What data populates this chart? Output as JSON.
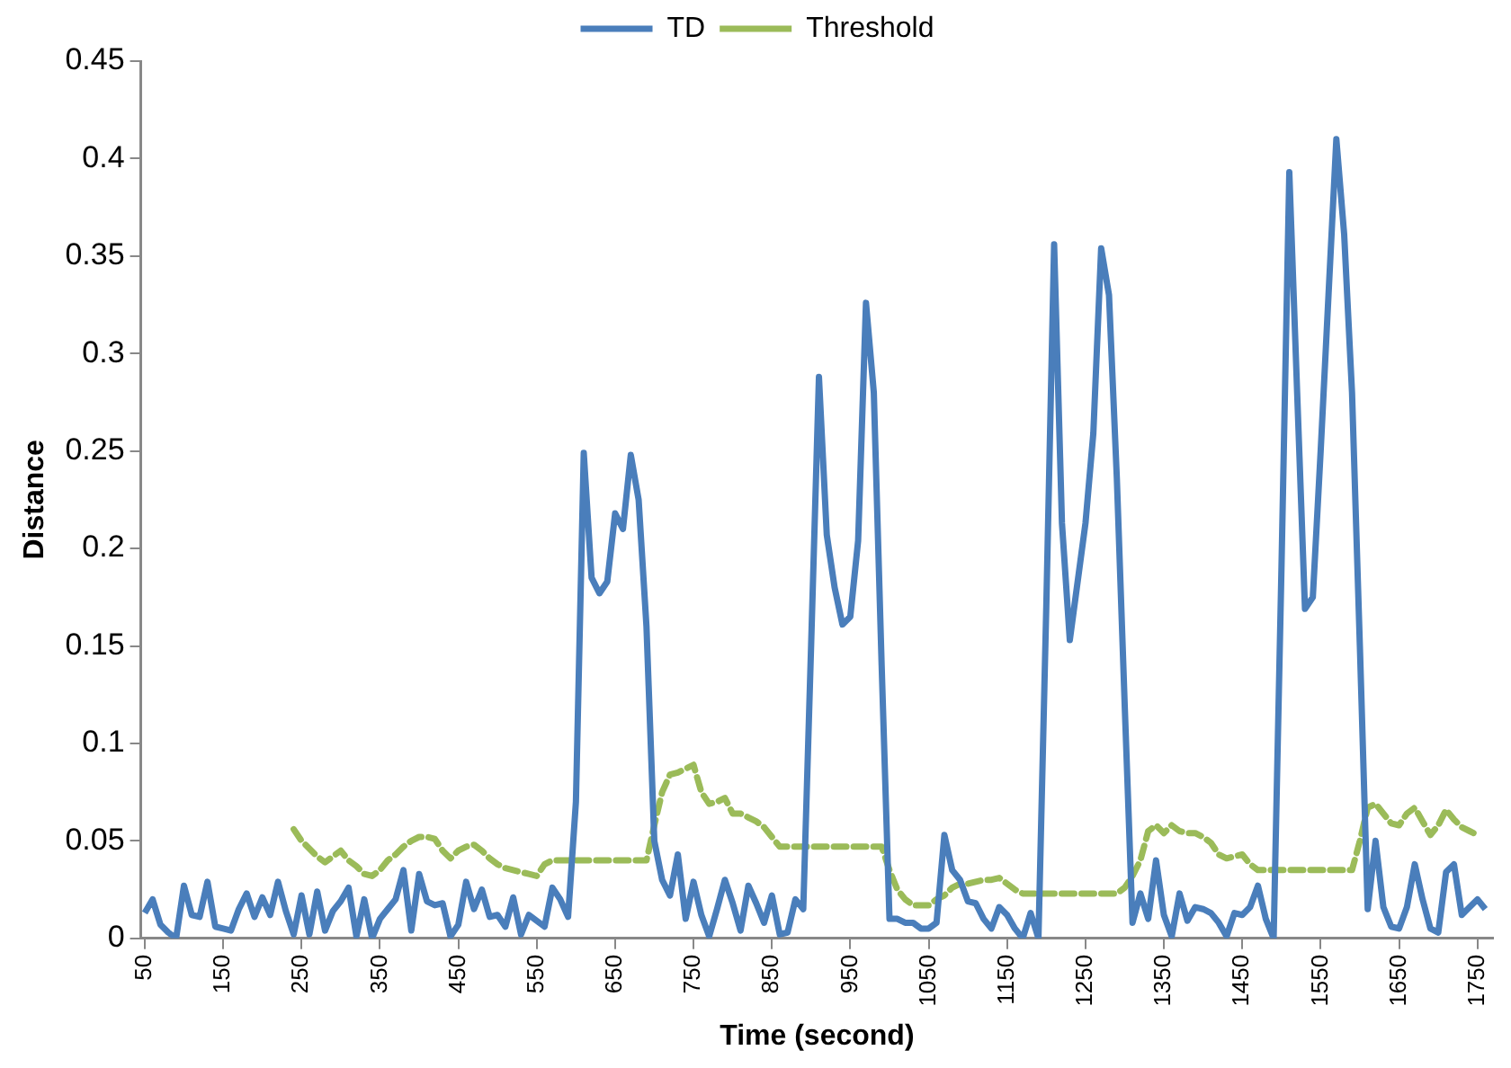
{
  "chart_data": {
    "type": "line",
    "xlabel": "Time (second)",
    "ylabel": "Distance",
    "legend": "top",
    "grid": false,
    "x": [
      50,
      60,
      70,
      80,
      90,
      100,
      110,
      120,
      130,
      140,
      150,
      160,
      170,
      180,
      190,
      200,
      210,
      220,
      230,
      240,
      250,
      260,
      270,
      280,
      290,
      300,
      310,
      320,
      330,
      340,
      350,
      360,
      370,
      380,
      390,
      400,
      410,
      420,
      430,
      440,
      450,
      460,
      470,
      480,
      490,
      500,
      510,
      520,
      530,
      540,
      550,
      560,
      570,
      580,
      590,
      600,
      610,
      620,
      630,
      640,
      650,
      660,
      670,
      680,
      690,
      700,
      710,
      720,
      730,
      740,
      750,
      760,
      770,
      780,
      790,
      800,
      810,
      820,
      830,
      840,
      850,
      860,
      870,
      880,
      890,
      900,
      910,
      920,
      930,
      940,
      950,
      960,
      970,
      980,
      990,
      1000,
      1010,
      1020,
      1030,
      1040,
      1050,
      1060,
      1070,
      1080,
      1090,
      1100,
      1110,
      1120,
      1130,
      1140,
      1150,
      1160,
      1170,
      1180,
      1190,
      1200,
      1210,
      1220,
      1230,
      1240,
      1250,
      1260,
      1270,
      1280,
      1290,
      1300,
      1310,
      1320,
      1330,
      1340,
      1350,
      1360,
      1370,
      1380,
      1390,
      1400,
      1410,
      1420,
      1430,
      1440,
      1450,
      1460,
      1470,
      1480,
      1490,
      1500,
      1510,
      1520,
      1530,
      1540,
      1550,
      1560,
      1570,
      1580,
      1590,
      1600,
      1610,
      1620,
      1630,
      1640,
      1650,
      1660,
      1670,
      1680,
      1690,
      1700,
      1710,
      1720,
      1730,
      1740,
      1750,
      1760
    ],
    "xlim": [
      45,
      1770
    ],
    "xticks": [
      50,
      150,
      250,
      350,
      450,
      550,
      650,
      750,
      850,
      950,
      1050,
      1150,
      1250,
      1350,
      1450,
      1550,
      1650,
      1750
    ],
    "ylim": [
      0,
      0.45
    ],
    "yticks": [
      0,
      0.05,
      0.1,
      0.15,
      0.2,
      0.25,
      0.3,
      0.35,
      0.4,
      0.45
    ],
    "series": [
      {
        "name": "TD",
        "color": "#4a7ebb",
        "line_style": "solid",
        "values": [
          0.013,
          0.02,
          0.007,
          0.003,
          0,
          0.027,
          0.012,
          0.011,
          0.029,
          0.006,
          0.005,
          0.004,
          0.015,
          0.023,
          0.011,
          0.021,
          0.012,
          0.029,
          0.014,
          0.002,
          0.022,
          0.002,
          0.024,
          0.004,
          0.014,
          0.019,
          0.026,
          0.001,
          0.02,
          0,
          0.01,
          0.015,
          0.02,
          0.035,
          0.004,
          0.033,
          0.019,
          0.017,
          0.018,
          0.001,
          0.007,
          0.029,
          0.015,
          0.025,
          0.011,
          0.012,
          0.006,
          0.021,
          0.002,
          0.012,
          0.009,
          0.006,
          0.026,
          0.02,
          0.011,
          0.07,
          0.249,
          0.185,
          0.177,
          0.183,
          0.218,
          0.21,
          0.248,
          0.225,
          0.16,
          0.05,
          0.03,
          0.022,
          0.043,
          0.01,
          0.029,
          0.012,
          0.001,
          0.015,
          0.03,
          0.018,
          0.004,
          0.027,
          0.018,
          0.008,
          0.022,
          0.002,
          0.003,
          0.02,
          0.015,
          0.15,
          0.288,
          0.207,
          0.18,
          0.161,
          0.165,
          0.204,
          0.326,
          0.28,
          0.14,
          0.01,
          0.01,
          0.008,
          0.008,
          0.005,
          0.005,
          0.008,
          0.053,
          0.035,
          0.03,
          0.019,
          0.018,
          0.01,
          0.005,
          0.016,
          0.012,
          0.005,
          0,
          0.013,
          0,
          0.17,
          0.356,
          0.213,
          0.153,
          0.183,
          0.213,
          0.259,
          0.354,
          0.33,
          0.236,
          0.12,
          0.008,
          0.023,
          0.01,
          0.04,
          0.012,
          0.001,
          0.023,
          0.009,
          0.016,
          0.015,
          0.013,
          0.008,
          0.001,
          0.013,
          0.012,
          0.016,
          0.027,
          0.01,
          0,
          0.19,
          0.393,
          0.28,
          0.169,
          0.175,
          0.25,
          0.33,
          0.41,
          0.361,
          0.28,
          0.15,
          0.015,
          0.05,
          0.016,
          0.006,
          0.005,
          0.016,
          0.038,
          0.02,
          0.005,
          0.003,
          0.034,
          0.038,
          0.012,
          0.016,
          0.02,
          0.015
        ]
      },
      {
        "name": "Threshold",
        "color": "#9bbb59",
        "line_style": "dashed",
        "values": [
          null,
          null,
          null,
          null,
          null,
          null,
          null,
          null,
          null,
          null,
          null,
          null,
          null,
          null,
          null,
          null,
          null,
          null,
          null,
          0.056,
          0.05,
          0.046,
          0.042,
          0.039,
          0.042,
          0.045,
          0.04,
          0.037,
          0.033,
          0.032,
          0.035,
          0.04,
          0.043,
          0.047,
          0.05,
          0.052,
          0.052,
          0.051,
          0.045,
          0.041,
          0.045,
          0.047,
          0.048,
          0.045,
          0.041,
          0.038,
          0.036,
          0.035,
          0.034,
          0.033,
          0.032,
          0.038,
          0.04,
          0.04,
          0.04,
          0.04,
          0.04,
          0.04,
          0.04,
          0.04,
          0.04,
          0.04,
          0.04,
          0.04,
          0.04,
          0.058,
          0.075,
          0.084,
          0.085,
          0.087,
          0.089,
          0.075,
          0.069,
          0.07,
          0.072,
          0.064,
          0.064,
          0.062,
          0.06,
          0.057,
          0.052,
          0.047,
          0.047,
          0.047,
          0.047,
          0.047,
          0.047,
          0.047,
          0.047,
          0.047,
          0.047,
          0.047,
          0.047,
          0.047,
          0.047,
          0.035,
          0.025,
          0.02,
          0.017,
          0.017,
          0.017,
          0.02,
          0.022,
          0.026,
          0.028,
          0.028,
          0.029,
          0.03,
          0.03,
          0.031,
          0.028,
          0.025,
          0.023,
          0.023,
          0.023,
          0.023,
          0.023,
          0.023,
          0.023,
          0.023,
          0.023,
          0.023,
          0.023,
          0.023,
          0.023,
          0.026,
          0.032,
          0.04,
          0.055,
          0.058,
          0.054,
          0.058,
          0.055,
          0.054,
          0.054,
          0.052,
          0.049,
          0.043,
          0.041,
          0.042,
          0.043,
          0.038,
          0.035,
          0.035,
          0.035,
          0.035,
          0.035,
          0.035,
          0.035,
          0.035,
          0.035,
          0.035,
          0.035,
          0.035,
          0.035,
          0.05,
          0.067,
          0.069,
          0.064,
          0.059,
          0.058,
          0.064,
          0.067,
          0.06,
          0.053,
          0.058,
          0.066,
          0.061,
          0.057,
          0.055,
          0.053,
          null
        ]
      }
    ]
  }
}
